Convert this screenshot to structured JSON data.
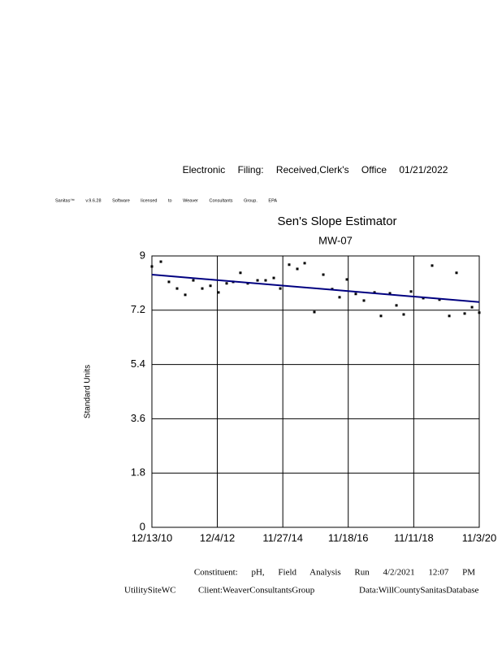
{
  "header": "Electronic Filing: Received,Clerk's Office 01/21/2022",
  "software_note": "Sanitas™ v.9.6.28 Software licensed to Weaver Consultants Group. EPA",
  "chart_data": {
    "type": "scatter",
    "title": "Sen's Slope Estimator",
    "subtitle": "MW-07",
    "y_label": "Standard Units",
    "xlim": [
      "12/13/10",
      "11/3/20"
    ],
    "xticks": [
      "12/13/10",
      "12/4/12",
      "11/27/14",
      "11/18/16",
      "11/11/18",
      "11/3/20"
    ],
    "ylim": [
      0,
      9
    ],
    "yticks": [
      0,
      1.8,
      3.6,
      5.4,
      7.2,
      9
    ],
    "grid": true,
    "series": [
      {
        "color": "#000000",
        "x": [
          "12/13/10",
          "3/22/11",
          "6/19/11",
          "9/17/11",
          "12/16/11",
          "3/14/12",
          "6/21/12",
          "9/19/12",
          "12/17/12",
          "3/17/13",
          "5/28/13",
          "8/16/13",
          "11/5/13",
          "2/21/14",
          "5/21/14",
          "8/19/14",
          "10/30/14",
          "2/5/15",
          "5/6/15",
          "7/26/15",
          "11/10/15",
          "2/17/16",
          "5/25/16",
          "8/14/16",
          "11/3/16",
          "2/9/17",
          "5/10/17",
          "9/4/17",
          "11/14/17",
          "2/21/18",
          "5/4/18",
          "7/23/18",
          "10/12/18",
          "2/24/19",
          "6/2/19",
          "8/22/19",
          "12/8/19",
          "2/26/20",
          "5/26/20",
          "8/15/20",
          "11/3/20"
        ],
        "values": [
          8.65,
          8.81,
          8.14,
          7.92,
          7.71,
          8.19,
          7.92,
          8.01,
          7.79,
          8.09,
          8.14,
          8.44,
          8.09,
          8.19,
          8.19,
          8.27,
          7.92,
          8.71,
          8.57,
          8.76,
          7.14,
          8.38,
          7.9,
          7.63,
          8.22,
          7.74,
          7.52,
          7.79,
          7.01,
          7.76,
          7.36,
          7.06,
          7.82,
          7.6,
          8.68,
          7.55,
          7.01,
          8.44,
          7.09,
          7.3,
          7.12
        ]
      }
    ],
    "trend_line": {
      "color": "#000080",
      "x": [
        "12/13/10",
        "11/3/20"
      ],
      "values": [
        8.38,
        7.47
      ]
    },
    "footer": {
      "constituent": "Constituent: pH, Field Analysis Run 4/2/2021 12:07 PM",
      "site": "UtilitySiteWC",
      "client": "Client:WeaverConsultantsGroup",
      "data_source": "Data:WillCountySanitasDatabase"
    }
  }
}
